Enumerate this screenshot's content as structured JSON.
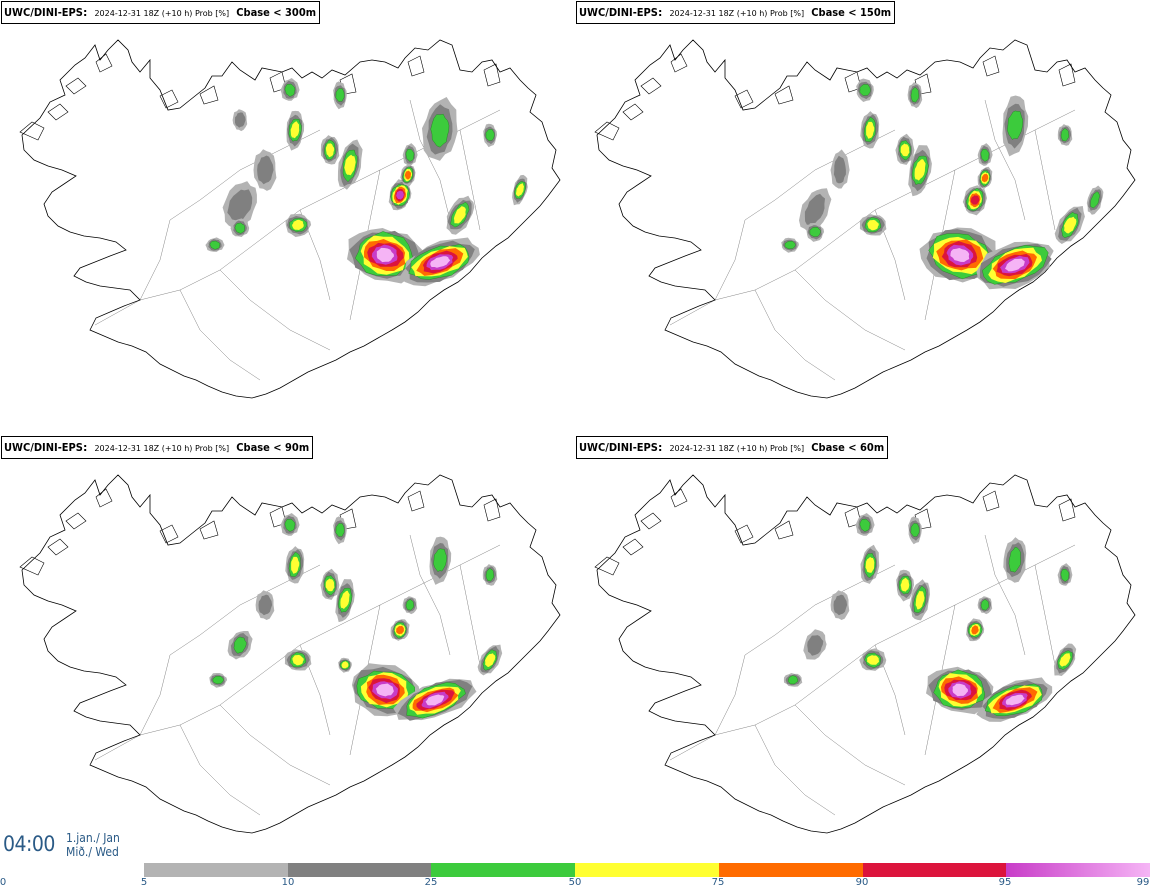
{
  "panels": [
    {
      "model": "UWC/DINI-EPS",
      "run": "2024-12-31 18Z (+10 h) Prob [%]",
      "variable": "Cbase < 300m"
    },
    {
      "model": "UWC/DINI-EPS",
      "run": "2024-12-31 18Z (+10 h) Prob [%]",
      "variable": "Cbase < 150m"
    },
    {
      "model": "UWC/DINI-EPS",
      "run": "2024-12-31 18Z (+10 h) Prob [%]",
      "variable": "Cbase < 90m"
    },
    {
      "model": "UWC/DINI-EPS",
      "run": "2024-12-31 18Z (+10 h) Prob [%]",
      "variable": "Cbase < 60m"
    }
  ],
  "timebox": {
    "time": "04:00",
    "date_line1": "1.jan./ Jan",
    "date_line2": "Mið./ Wed"
  },
  "colorbar": {
    "ticks": [
      "0",
      "5",
      "10",
      "25",
      "50",
      "75",
      "90",
      "95",
      "99"
    ],
    "segments": [
      {
        "from": "5",
        "to": "10",
        "color": "#b3b3b3"
      },
      {
        "from": "10",
        "to": "25",
        "color": "#808080"
      },
      {
        "from": "25",
        "to": "50",
        "color": "#3ccb3c"
      },
      {
        "from": "50",
        "to": "75",
        "color": "#ffff32"
      },
      {
        "from": "75",
        "to": "90",
        "color": "#ff6b00"
      },
      {
        "from": "90",
        "to": "95",
        "color": "#dc143c"
      },
      {
        "from": "95",
        "to": "99",
        "color": "#c83cc8"
      },
      {
        "from": "99",
        "to": "100",
        "color": "#f5b4f5"
      }
    ]
  },
  "colors": {
    "coastline": "#000000",
    "roads": "#333333",
    "text_accent": "#2a5a86"
  }
}
